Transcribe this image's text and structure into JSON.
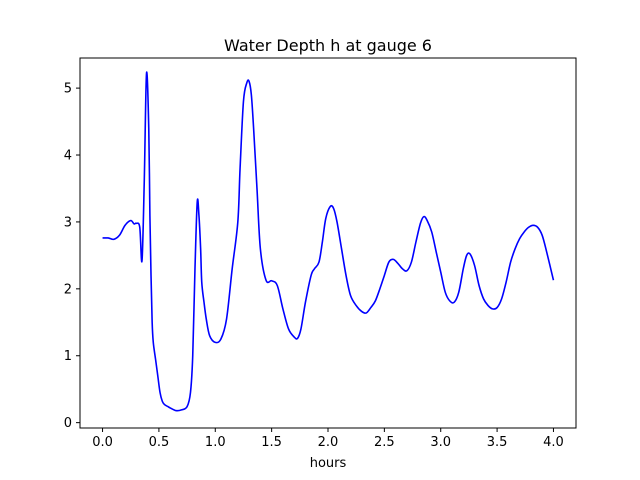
{
  "chart_data": {
    "type": "line",
    "title": "Water Depth h at gauge 6",
    "xlabel": "hours",
    "ylabel": "",
    "xlim": [
      -0.2,
      4.2
    ],
    "ylim": [
      -0.08,
      5.45
    ],
    "xticks": [
      "0.0",
      "0.5",
      "1.0",
      "1.5",
      "2.0",
      "2.5",
      "3.0",
      "3.5",
      "4.0"
    ],
    "yticks": [
      "0",
      "1",
      "2",
      "3",
      "4",
      "5"
    ],
    "grid": false,
    "legend": "none",
    "series": [
      {
        "color": "#0000ff",
        "x": [
          0.0,
          0.05,
          0.1,
          0.15,
          0.2,
          0.25,
          0.28,
          0.3,
          0.33,
          0.35,
          0.37,
          0.39,
          0.41,
          0.42,
          0.43,
          0.44,
          0.45,
          0.47,
          0.49,
          0.51,
          0.53,
          0.55,
          0.58,
          0.6,
          0.65,
          0.7,
          0.75,
          0.78,
          0.8,
          0.82,
          0.84,
          0.855,
          0.87,
          0.88,
          0.9,
          0.92,
          0.95,
          1.0,
          1.05,
          1.1,
          1.15,
          1.2,
          1.22,
          1.25,
          1.28,
          1.3,
          1.32,
          1.34,
          1.37,
          1.4,
          1.45,
          1.5,
          1.55,
          1.6,
          1.65,
          1.7,
          1.73,
          1.76,
          1.8,
          1.85,
          1.88,
          1.92,
          1.95,
          1.98,
          2.02,
          2.05,
          2.08,
          2.12,
          2.16,
          2.2,
          2.25,
          2.3,
          2.34,
          2.38,
          2.42,
          2.46,
          2.5,
          2.54,
          2.58,
          2.62,
          2.66,
          2.7,
          2.74,
          2.78,
          2.82,
          2.85,
          2.88,
          2.92,
          2.96,
          3.0,
          3.04,
          3.08,
          3.12,
          3.16,
          3.2,
          3.23,
          3.26,
          3.3,
          3.34,
          3.38,
          3.42,
          3.46,
          3.5,
          3.54,
          3.58,
          3.62,
          3.66,
          3.7,
          3.74,
          3.78,
          3.82,
          3.86,
          3.9,
          3.94,
          4.0
        ],
        "y": [
          2.76,
          2.76,
          2.74,
          2.8,
          2.95,
          3.02,
          2.97,
          2.98,
          2.92,
          2.42,
          3.6,
          5.22,
          4.4,
          3.1,
          2.2,
          1.5,
          1.2,
          0.95,
          0.7,
          0.45,
          0.32,
          0.27,
          0.24,
          0.22,
          0.18,
          0.19,
          0.24,
          0.45,
          1.0,
          2.3,
          3.3,
          3.1,
          2.6,
          2.1,
          1.8,
          1.55,
          1.3,
          1.2,
          1.25,
          1.55,
          2.3,
          3.0,
          3.8,
          4.8,
          5.08,
          5.1,
          4.9,
          4.4,
          3.5,
          2.6,
          2.13,
          2.12,
          2.05,
          1.7,
          1.4,
          1.28,
          1.26,
          1.4,
          1.8,
          2.2,
          2.3,
          2.4,
          2.7,
          3.05,
          3.23,
          3.2,
          3.0,
          2.6,
          2.2,
          1.9,
          1.75,
          1.66,
          1.64,
          1.72,
          1.82,
          2.0,
          2.2,
          2.4,
          2.44,
          2.38,
          2.3,
          2.27,
          2.4,
          2.7,
          2.98,
          3.08,
          3.02,
          2.85,
          2.55,
          2.25,
          1.95,
          1.82,
          1.8,
          1.95,
          2.3,
          2.5,
          2.52,
          2.35,
          2.05,
          1.85,
          1.75,
          1.7,
          1.72,
          1.85,
          2.1,
          2.4,
          2.6,
          2.75,
          2.85,
          2.92,
          2.95,
          2.92,
          2.8,
          2.55,
          2.13
        ]
      }
    ]
  }
}
